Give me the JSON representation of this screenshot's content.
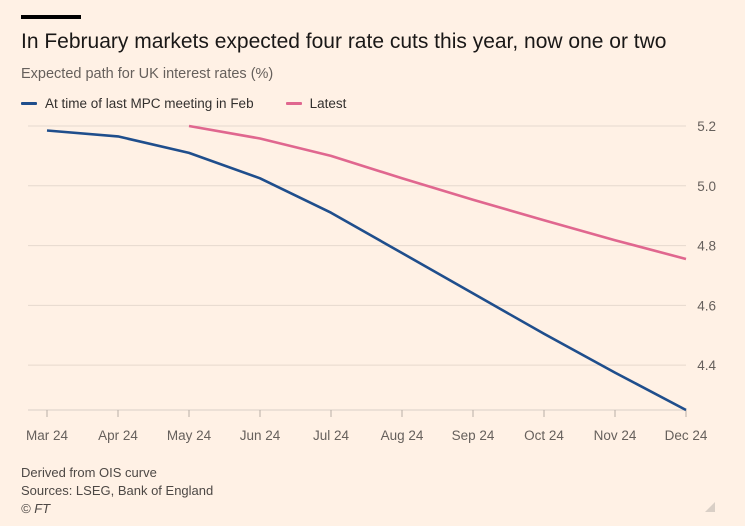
{
  "chart_data": {
    "type": "line",
    "title": "In February markets expected four rate cuts this year, now one or two",
    "subtitle": "Expected path for UK interest rates (%)",
    "categories": [
      "Mar 24",
      "Apr 24",
      "May 24",
      "Jun 24",
      "Jul 24",
      "Aug 24",
      "Sep 24",
      "Oct 24",
      "Nov 24",
      "Dec 24"
    ],
    "series": [
      {
        "name": "At time of last MPC meeting in Feb",
        "color": "#1f4e8c",
        "values": [
          5.185,
          5.165,
          5.11,
          5.025,
          4.91,
          4.775,
          4.64,
          4.505,
          4.375,
          4.25
        ]
      },
      {
        "name": "Latest",
        "color": "#e0678f",
        "values": [
          null,
          null,
          5.2,
          5.158,
          5.1,
          5.025,
          4.953,
          4.885,
          4.818,
          4.755
        ]
      }
    ],
    "yticks": [
      4.4,
      4.6,
      4.8,
      5.0,
      5.2
    ],
    "ylim": [
      4.25,
      5.22
    ],
    "y_axis_position": "right",
    "grid": true,
    "legend_position": "top-left"
  },
  "footer": {
    "note": "Derived from OIS curve",
    "sources": "Sources: LSEG, Bank of England",
    "credit": "© FT"
  }
}
